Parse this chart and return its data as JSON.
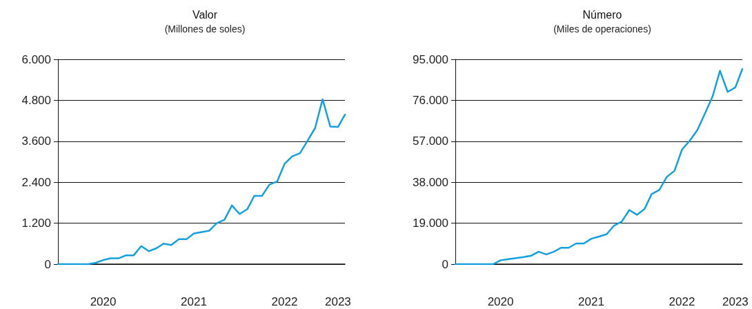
{
  "chart_data": [
    {
      "type": "line",
      "title": "Valor",
      "subtitle": "(Millones de soles)",
      "x": [
        "2020-01",
        "2020-02",
        "2020-03",
        "2020-04",
        "2020-05",
        "2020-06",
        "2020-07",
        "2020-08",
        "2020-09",
        "2020-10",
        "2020-11",
        "2020-12",
        "2021-01",
        "2021-02",
        "2021-03",
        "2021-04",
        "2021-05",
        "2021-06",
        "2021-07",
        "2021-08",
        "2021-09",
        "2021-10",
        "2021-11",
        "2021-12",
        "2022-01",
        "2022-02",
        "2022-03",
        "2022-04",
        "2022-05",
        "2022-06",
        "2022-07",
        "2022-08",
        "2022-09",
        "2022-10",
        "2022-11",
        "2022-12",
        "2023-01",
        "2023-02",
        "2023-03"
      ],
      "series": [
        {
          "color": "#12a0e0",
          "values": [
            0,
            0,
            0,
            0,
            0,
            40,
            120,
            170,
            170,
            260,
            260,
            530,
            380,
            470,
            600,
            560,
            730,
            730,
            900,
            940,
            980,
            1200,
            1300,
            1720,
            1470,
            1610,
            2000,
            2000,
            2330,
            2420,
            2940,
            3160,
            3250,
            3610,
            3990,
            4830,
            4030,
            4020,
            4380
          ]
        }
      ],
      "xlim": [
        "2020-01",
        "2023-03"
      ],
      "xticks": [
        {
          "value": "2020-07",
          "label": "2020"
        },
        {
          "value": "2021-07",
          "label": "2021"
        },
        {
          "value": "2022-07",
          "label": "2022"
        },
        {
          "value": "2023-02",
          "label": "2023"
        }
      ],
      "ylim": [
        0,
        6000
      ],
      "yticks": [
        0,
        {
          "value": 1200,
          "label": "1.200"
        },
        {
          "value": 2400,
          "label": "2.400"
        },
        {
          "value": 3600,
          "label": "3.600"
        },
        {
          "value": 4800,
          "label": "4.800"
        },
        {
          "value": 6000,
          "label": "6.000"
        }
      ],
      "grid": "y",
      "marker": "none",
      "line_style": "solid"
    },
    {
      "type": "line",
      "title": "Número",
      "subtitle": "(Miles de operaciones)",
      "x": [
        "2020-01",
        "2020-02",
        "2020-03",
        "2020-04",
        "2020-05",
        "2020-06",
        "2020-07",
        "2020-08",
        "2020-09",
        "2020-10",
        "2020-11",
        "2020-12",
        "2021-01",
        "2021-02",
        "2021-03",
        "2021-04",
        "2021-05",
        "2021-06",
        "2021-07",
        "2021-08",
        "2021-09",
        "2021-10",
        "2021-11",
        "2021-12",
        "2022-01",
        "2022-02",
        "2022-03",
        "2022-04",
        "2022-05",
        "2022-06",
        "2022-07",
        "2022-08",
        "2022-09",
        "2022-10",
        "2022-11",
        "2022-12",
        "2023-01",
        "2023-02",
        "2023-03"
      ],
      "series": [
        {
          "color": "#12a0e0",
          "values": [
            0,
            0,
            0,
            0,
            0,
            0,
            1800,
            2300,
            2800,
            3300,
            3900,
            5800,
            4500,
            5800,
            7600,
            7600,
            9600,
            9600,
            11800,
            12800,
            13900,
            17900,
            19800,
            25100,
            22900,
            25700,
            32500,
            34400,
            40500,
            43300,
            53100,
            57200,
            62200,
            69700,
            77700,
            89700,
            79900,
            82000,
            90500
          ]
        }
      ],
      "xlim": [
        "2020-01",
        "2023-03"
      ],
      "xticks": [
        {
          "value": "2020-07",
          "label": "2020"
        },
        {
          "value": "2021-07",
          "label": "2021"
        },
        {
          "value": "2022-07",
          "label": "2022"
        },
        {
          "value": "2023-02",
          "label": "2023"
        }
      ],
      "ylim": [
        0,
        95000
      ],
      "yticks": [
        0,
        {
          "value": 19000,
          "label": "19.000"
        },
        {
          "value": 38000,
          "label": "38.000"
        },
        {
          "value": 57000,
          "label": "57.000"
        },
        {
          "value": 76000,
          "label": "76.000"
        },
        {
          "value": 95000,
          "label": "95.000"
        }
      ],
      "grid": "y",
      "marker": "none",
      "line_style": "solid"
    }
  ]
}
